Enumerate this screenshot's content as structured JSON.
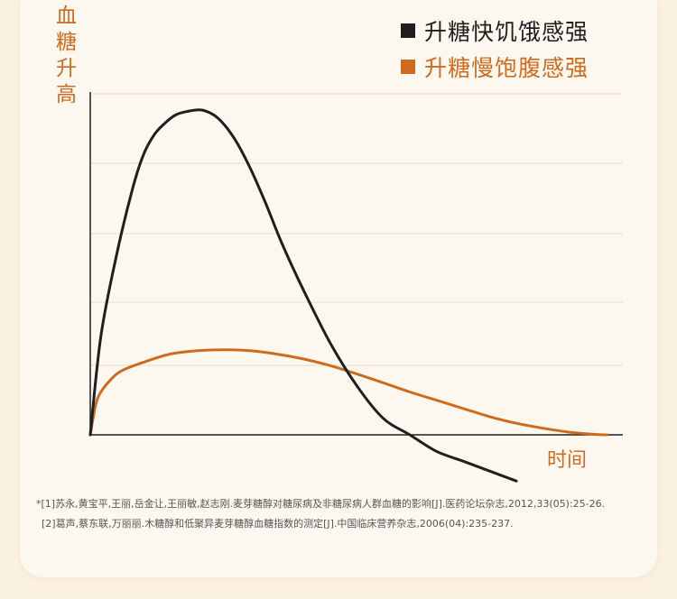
{
  "colors": {
    "background": "#fbf1e2",
    "panel": "#fdf8ef",
    "grid": "#e4dccf",
    "axis": "#1f1f1f",
    "fast_series": "#1f1f1f",
    "slow_series": "#cf6b1f",
    "axis_label": "#cf6b1f"
  },
  "chart_data": {
    "type": "line",
    "title": "",
    "ylabel": "血糖升高",
    "xlabel": "时间",
    "grid": true,
    "legend_position": "top-right",
    "series": [
      {
        "name": "升糖快饥饿感强",
        "color": "#1f1f1f",
        "x": [
          0,
          2,
          5,
          8,
          10,
          12,
          14,
          16,
          18,
          21,
          24,
          27,
          30,
          33,
          36,
          40,
          45,
          50,
          55,
          60,
          65,
          70,
          75,
          80
        ],
        "y": [
          0,
          30,
          55,
          75,
          85,
          91,
          94.5,
          97,
          98,
          98.5,
          96,
          90,
          81,
          70,
          58,
          44,
          28,
          15,
          5,
          0,
          -5,
          -8,
          -11,
          -14
        ]
      },
      {
        "name": "升糖慢饱腹感强",
        "color": "#cf6b1f",
        "x": [
          0,
          1,
          2,
          4,
          6,
          10,
          15,
          20,
          25,
          30,
          35,
          40,
          45,
          50,
          55,
          60,
          65,
          70,
          75,
          80,
          85,
          90,
          95,
          97
        ],
        "y": [
          0,
          9,
          13,
          17,
          19.5,
          22,
          24.5,
          25.5,
          25.8,
          25.5,
          24.5,
          23,
          21,
          18.5,
          15.8,
          13,
          10.5,
          8,
          5.5,
          3.5,
          2,
          0.8,
          0.1,
          0
        ]
      }
    ],
    "xlim": [
      0,
      100
    ],
    "ylim": [
      -16,
      100
    ]
  },
  "references": [
    "*[1]苏永,黄宝平,王丽,岳金让,王丽敏,赵志刚.麦芽糖醇对糖尿病及非糖尿病人群血糖的影响[J].医药论坛杂志,2012,33(05):25-26.",
    "[2]葛声,蔡东联,万丽丽.木糖醇和低聚异麦芽糖醇血糖指数的测定[J].中国临床营养杂志,2006(04):235-237."
  ]
}
